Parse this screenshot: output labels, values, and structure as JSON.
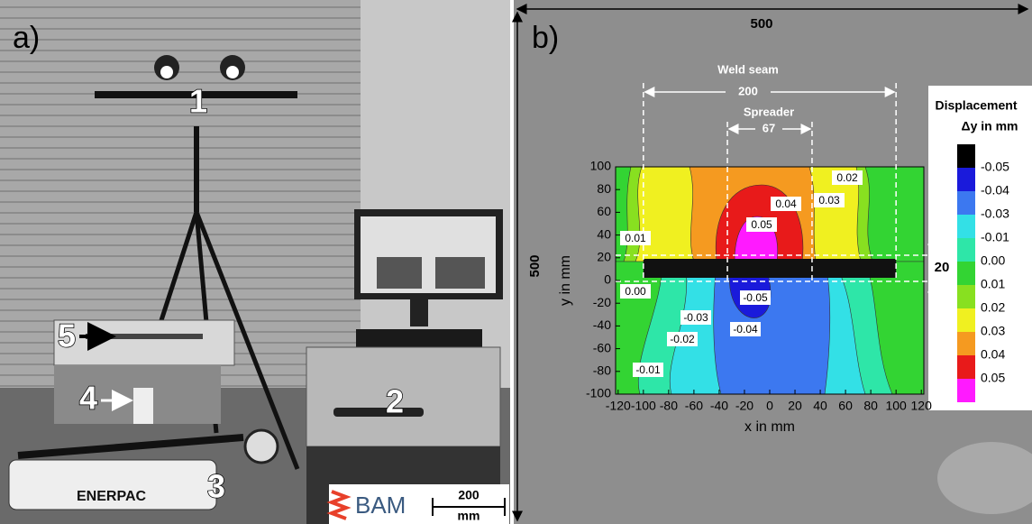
{
  "panel_a": {
    "label": "a)",
    "callouts": [
      "1",
      "2",
      "3",
      "4",
      "5"
    ],
    "brand": "ENERPAC",
    "logo": "BAM",
    "scale_value": "200",
    "scale_unit": "mm"
  },
  "panel_b": {
    "label": "b)",
    "width_label": "500",
    "height_label": "500",
    "weld_seam": {
      "title": "Weld seam",
      "width": "200"
    },
    "spreader": {
      "title": "Spreader",
      "width": "67"
    },
    "gap": "20",
    "x_label": "x in mm",
    "y_label": "y in mm",
    "xlim": [
      -122,
      122
    ],
    "ylim": [
      -100,
      100
    ],
    "xticks": [
      -120,
      -100,
      -80,
      -60,
      -40,
      -20,
      0,
      20,
      40,
      60,
      80,
      100,
      120
    ],
    "yticks": [
      -100,
      -80,
      -60,
      -40,
      -20,
      0,
      20,
      40,
      60,
      80,
      100
    ],
    "colorbar": {
      "title": "Displacement",
      "subtitle": "Δy in mm",
      "colors": [
        "#000000",
        "#1a1adb",
        "#3c78f0",
        "#33e0e6",
        "#2ee6a8",
        "#33d433",
        "#88e020",
        "#f0f020",
        "#f59a20",
        "#e81a1a",
        "#ff1aff"
      ],
      "labels": [
        "-0.05",
        "-0.04",
        "-0.03",
        "-0.01",
        "0.00",
        "0.01",
        "0.02",
        "0.03",
        "0.04",
        "0.05"
      ]
    },
    "contour_labels": [
      "0.02",
      "0.03",
      "0.04",
      "0.05",
      "0.01",
      "0.00",
      "-0.05",
      "-0.03",
      "-0.04",
      "-0.02",
      "-0.01"
    ]
  }
}
